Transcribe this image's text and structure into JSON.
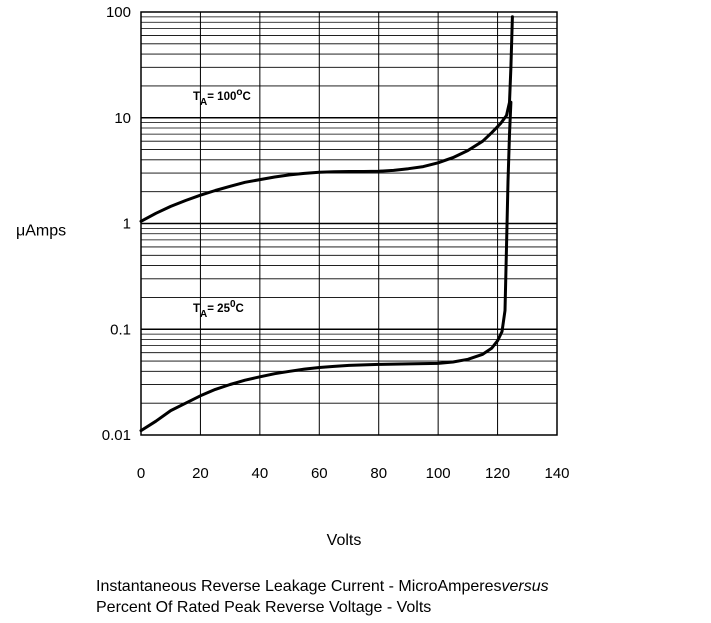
{
  "chart_data": {
    "type": "line",
    "x_axis": {
      "label": "Volts",
      "range": [
        0,
        140
      ],
      "ticks": [
        "0",
        "20",
        "40",
        "60",
        "80",
        "100",
        "120",
        "140"
      ]
    },
    "y_axis": {
      "label": "μAmps",
      "scale": "log",
      "range": [
        0.01,
        100
      ],
      "ticks": [
        "0.01",
        "0.1",
        "1",
        "10",
        "100"
      ]
    },
    "grid": true,
    "series": [
      {
        "name": "T_A = 100°C",
        "annotation": {
          "t": "T",
          "sub": "A",
          "eq": "= 100",
          "deg": "o",
          "unit": "C"
        },
        "points": [
          [
            0,
            1.05
          ],
          [
            5,
            1.25
          ],
          [
            10,
            1.45
          ],
          [
            15,
            1.65
          ],
          [
            20,
            1.85
          ],
          [
            25,
            2.05
          ],
          [
            30,
            2.25
          ],
          [
            35,
            2.45
          ],
          [
            40,
            2.6
          ],
          [
            45,
            2.75
          ],
          [
            50,
            2.88
          ],
          [
            55,
            2.98
          ],
          [
            60,
            3.05
          ],
          [
            65,
            3.08
          ],
          [
            70,
            3.1
          ],
          [
            75,
            3.1
          ],
          [
            80,
            3.12
          ],
          [
            85,
            3.18
          ],
          [
            90,
            3.3
          ],
          [
            95,
            3.45
          ],
          [
            100,
            3.75
          ],
          [
            105,
            4.2
          ],
          [
            110,
            4.9
          ],
          [
            115,
            6.0
          ],
          [
            118,
            7.2
          ],
          [
            121,
            8.8
          ],
          [
            123,
            10.5
          ],
          [
            124,
            14
          ],
          [
            124.5,
            30
          ],
          [
            125,
            90
          ]
        ]
      },
      {
        "name": "T_A = 25°C",
        "annotation": {
          "t": "T",
          "sub": "A",
          "eq": "= 25",
          "deg": "0",
          "unit": "C"
        },
        "points": [
          [
            0,
            0.011
          ],
          [
            5,
            0.0135
          ],
          [
            10,
            0.017
          ],
          [
            15,
            0.02
          ],
          [
            20,
            0.0235
          ],
          [
            25,
            0.027
          ],
          [
            30,
            0.03
          ],
          [
            35,
            0.033
          ],
          [
            40,
            0.0355
          ],
          [
            45,
            0.038
          ],
          [
            50,
            0.04
          ],
          [
            55,
            0.042
          ],
          [
            60,
            0.0435
          ],
          [
            65,
            0.0445
          ],
          [
            70,
            0.0455
          ],
          [
            80,
            0.0465
          ],
          [
            90,
            0.047
          ],
          [
            100,
            0.0475
          ],
          [
            105,
            0.049
          ],
          [
            110,
            0.052
          ],
          [
            115,
            0.058
          ],
          [
            118,
            0.066
          ],
          [
            120,
            0.078
          ],
          [
            121.5,
            0.095
          ],
          [
            122.5,
            0.15
          ],
          [
            123,
            0.6
          ],
          [
            123.5,
            2.5
          ],
          [
            124,
            7
          ],
          [
            124.5,
            14
          ]
        ]
      }
    ]
  },
  "caption": {
    "line1_start": "Instantaneous Reverse Leakage Current - MicroAmperes",
    "line1_italic": "versus",
    "line2": "Percent Of Rated Peak Reverse Voltage - Volts"
  }
}
